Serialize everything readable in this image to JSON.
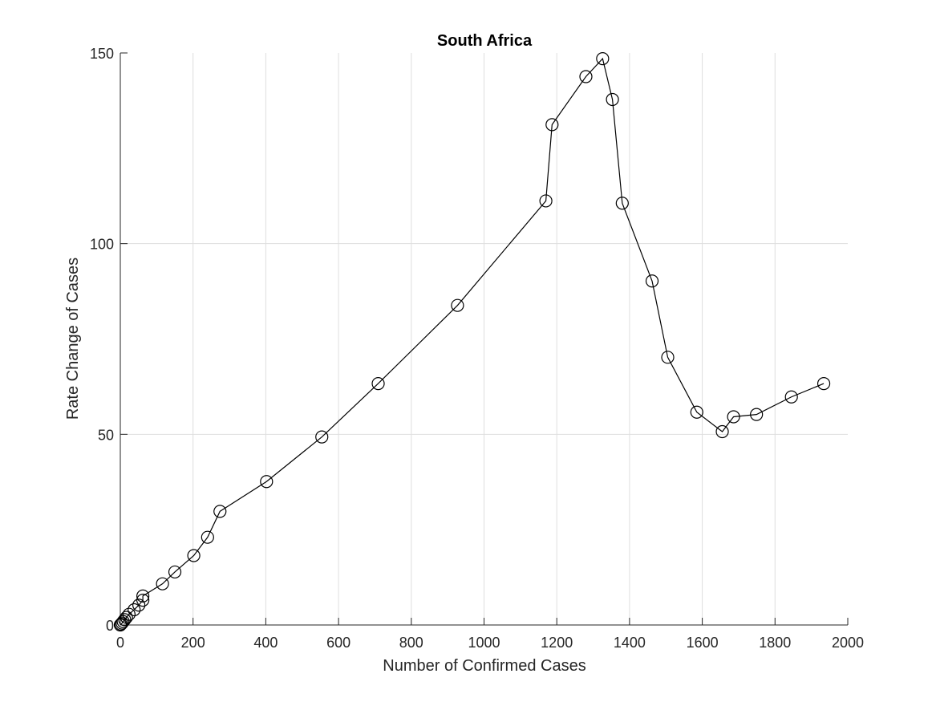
{
  "chart_data": {
    "type": "line",
    "title": "South Africa",
    "xlabel": "Number of Confirmed Cases",
    "ylabel": "Rate Change of Cases",
    "xlim": [
      0,
      2000
    ],
    "ylim": [
      0,
      150
    ],
    "xticks": [
      0,
      200,
      400,
      600,
      800,
      1000,
      1200,
      1400,
      1600,
      1800,
      2000
    ],
    "yticks": [
      0,
      50,
      100,
      150
    ],
    "grid": true,
    "marker": "circle",
    "line_color": "#000000",
    "series": [
      {
        "x": [
          0,
          2,
          5,
          8,
          12,
          17,
          24,
          38,
          51,
          62,
          62,
          116,
          150,
          202,
          240,
          274,
          402,
          554,
          709,
          927,
          1170,
          1187,
          1280,
          1326,
          1353,
          1380,
          1462,
          1505,
          1585,
          1655,
          1686,
          1749,
          1845,
          1934
        ],
        "y": [
          0,
          0.2,
          0.5,
          0.9,
          1.4,
          2.0,
          2.8,
          4.0,
          5.2,
          6.5,
          7.6,
          10.8,
          13.9,
          18.2,
          23.0,
          29.8,
          37.6,
          49.3,
          63.3,
          83.8,
          111.2,
          131.2,
          143.8,
          148.5,
          137.8,
          110.6,
          90.2,
          70.2,
          55.8,
          50.7,
          54.6,
          55.2,
          59.8,
          63.3
        ]
      }
    ]
  }
}
